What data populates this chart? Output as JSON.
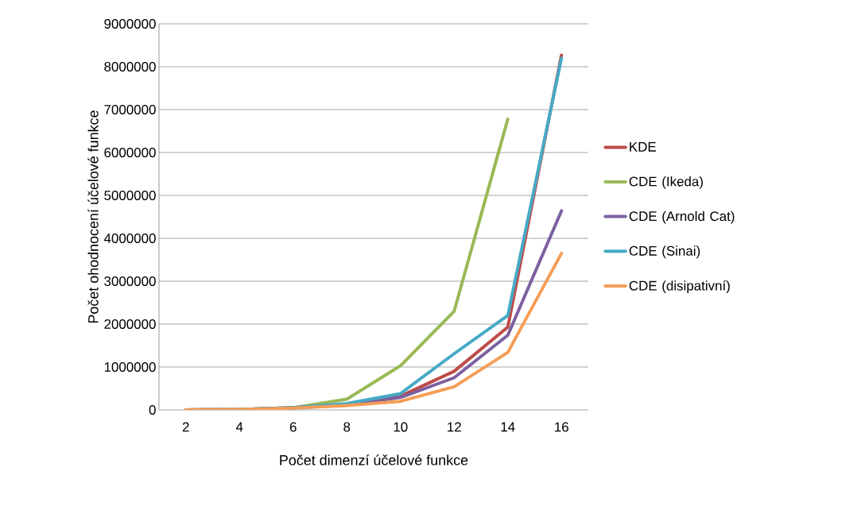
{
  "chart_data": {
    "type": "line",
    "xlabel": "Počet dimenzí účelové funkce",
    "ylabel": "Počet ohodnocení účelové funkce",
    "categories": [
      "2",
      "4",
      "6",
      "8",
      "10",
      "12",
      "14",
      "16"
    ],
    "series": [
      {
        "name": "KDE",
        "color": "#be4b48",
        "values": [
          0,
          10000,
          50000,
          120000,
          320000,
          900000,
          1930000,
          8270000
        ]
      },
      {
        "name": "CDE (Ikeda)",
        "color": "#98b954",
        "values": [
          0,
          10000,
          50000,
          250000,
          1030000,
          2300000,
          6780000,
          null
        ]
      },
      {
        "name": "CDE (Arnold Cat)",
        "color": "#7d60a0",
        "values": [
          0,
          10000,
          50000,
          110000,
          290000,
          750000,
          1740000,
          4640000
        ]
      },
      {
        "name": "CDE (Sinai)",
        "color": "#46aac5",
        "values": [
          0,
          10000,
          50000,
          150000,
          380000,
          1310000,
          2200000,
          8200000
        ]
      },
      {
        "name": "CDE (disipativní)",
        "color": "#f59d56",
        "values": [
          0,
          10000,
          40000,
          100000,
          200000,
          540000,
          1340000,
          3650000
        ]
      }
    ],
    "ylim": [
      0,
      9000000
    ],
    "yticks": [
      0,
      1000000,
      2000000,
      3000000,
      4000000,
      5000000,
      6000000,
      7000000,
      8000000,
      9000000
    ],
    "grid": "y",
    "legend": "right"
  }
}
